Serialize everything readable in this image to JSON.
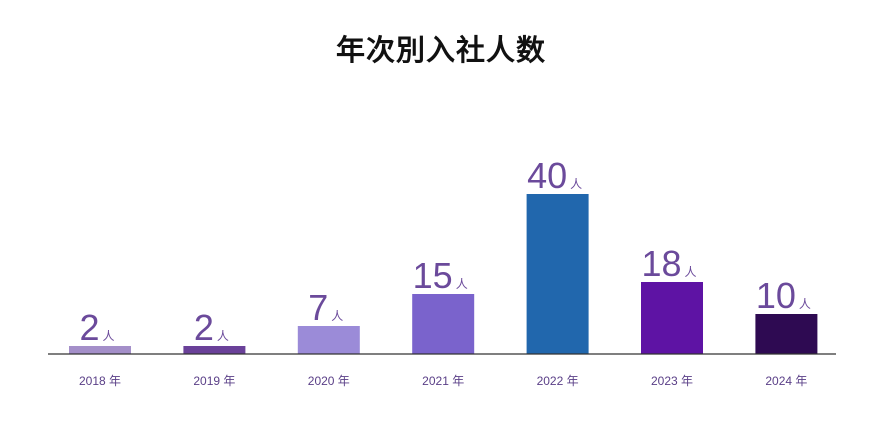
{
  "chart_data": {
    "type": "bar",
    "title": "年次別入社人数",
    "xlabel": "",
    "ylabel": "",
    "categories": [
      "2018 年",
      "2019 年",
      "2020 年",
      "2021 年",
      "2022 年",
      "2023 年",
      "2024 年"
    ],
    "values": [
      2,
      2,
      7,
      15,
      40,
      18,
      10
    ],
    "value_labels": [
      "2",
      "2",
      "7",
      "15",
      "40",
      "18",
      "10"
    ],
    "unit": "人",
    "colors": [
      "#a48fc9",
      "#6a4199",
      "#9b8bd8",
      "#7a63cc",
      "#2167ad",
      "#5e13a4",
      "#2e0a52"
    ],
    "label_color": "#6b4a9b",
    "tick_color": "#5a3f87",
    "axis_color": "#333333",
    "ylim": [
      0,
      40
    ],
    "grid": false,
    "legend": "none"
  }
}
